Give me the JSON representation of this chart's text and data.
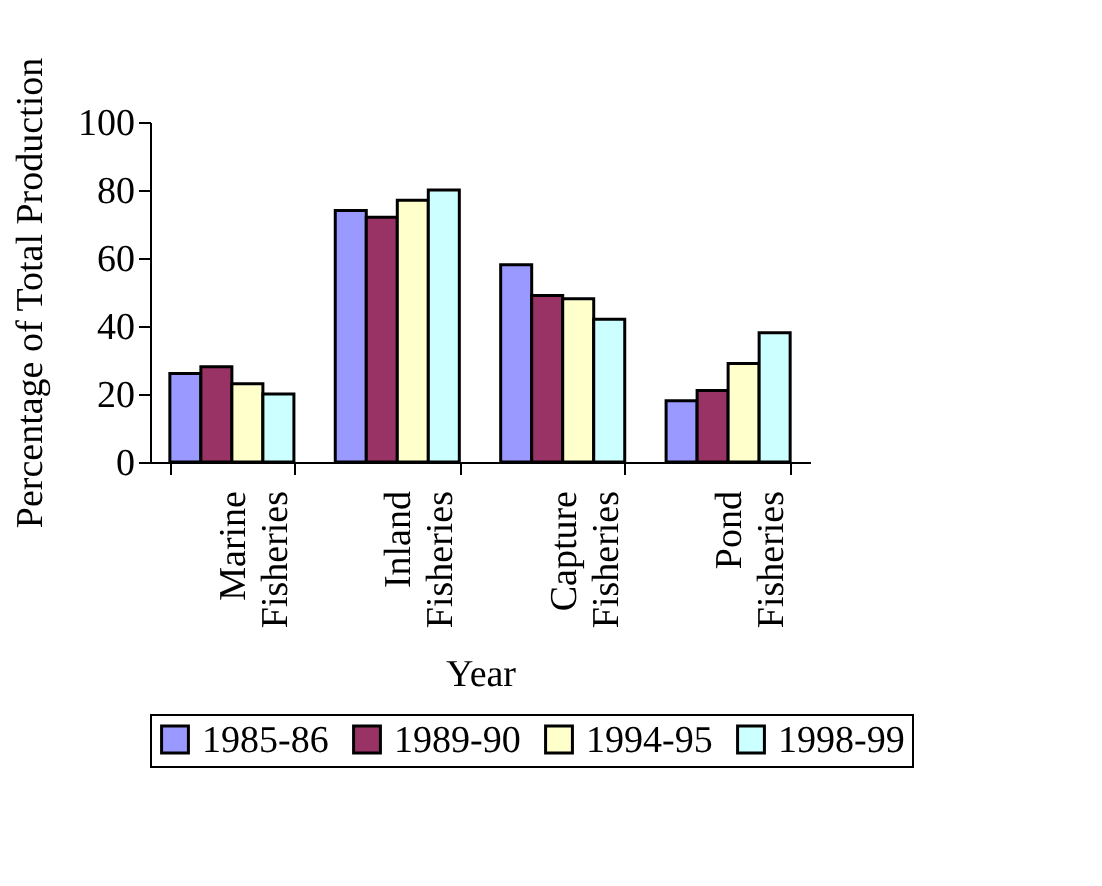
{
  "chart_data": {
    "type": "bar",
    "xlabel": "Year",
    "ylabel": "Percentage of Total Production",
    "categories": [
      "Marine Fisheries",
      "Inland Fisheries",
      "Capture Fisheries",
      "Pond Fisheries"
    ],
    "series": [
      {
        "name": "1985-86",
        "color": "#9999ff",
        "values": [
          26,
          74,
          58,
          18
        ]
      },
      {
        "name": "1989-90",
        "color": "#993366",
        "values": [
          28,
          72,
          49,
          21
        ]
      },
      {
        "name": "1994-95",
        "color": "#ffffcc",
        "values": [
          23,
          77,
          48,
          29
        ]
      },
      {
        "name": "1998-99",
        "color": "#ccffff",
        "values": [
          20,
          80,
          42,
          38
        ]
      }
    ],
    "ylim": [
      0,
      100
    ],
    "yticks": [
      0,
      20,
      40,
      60,
      80,
      100
    ],
    "grid": false,
    "legend": "bottom"
  }
}
